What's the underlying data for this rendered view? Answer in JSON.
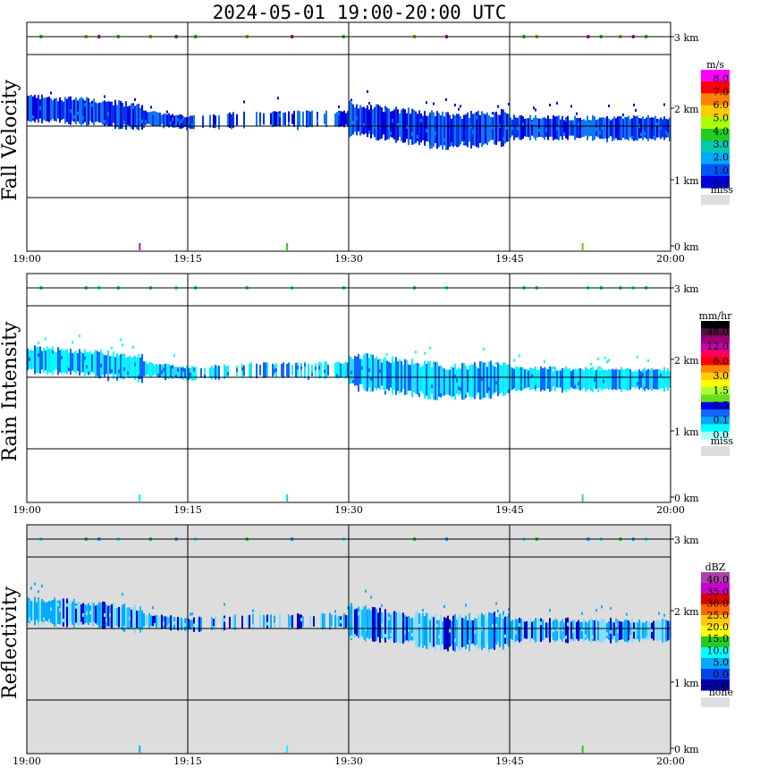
{
  "title": "2024-05-01   19:00-20:00 UTC",
  "chart_data": [
    {
      "type": "heatmap",
      "ylabel": "Fall Velocity",
      "x_ticks": [
        "19:00",
        "19:15",
        "19:30",
        "19:45",
        "20:00"
      ],
      "y_ticks": [
        "0 km",
        "1 km",
        "2 km",
        "3 km"
      ],
      "xlim": [
        "19:00",
        "20:00"
      ],
      "ylim_km": [
        0,
        3.2
      ],
      "grid": true,
      "colorbar": {
        "unit": "m/s",
        "labels": [
          "8.0",
          "7.0",
          "6.0",
          "5.0",
          "4.0",
          "3.0",
          "2.0",
          "1.0",
          "0.0"
        ],
        "colors": [
          "#ff00ff",
          "#ff0000",
          "#ff7f00",
          "#ffcc00",
          "#aaff00",
          "#22cc22",
          "#00ccaa",
          "#00aaff",
          "#0055ff",
          "#0000dd"
        ],
        "miss_label": "miss",
        "miss_color": "#dddddd"
      },
      "background": "#ffffff",
      "layer_colors": [
        "#0000dd",
        "#0033ee",
        "#1177ee"
      ],
      "echo_colors": [
        "#22cc22",
        "#66cc00",
        "#aa22aa"
      ]
    },
    {
      "type": "heatmap",
      "ylabel": "Rain Intensity",
      "x_ticks": [
        "19:00",
        "19:15",
        "19:30",
        "19:45",
        "20:00"
      ],
      "y_ticks": [
        "0 km",
        "1 km",
        "2 km",
        "3 km"
      ],
      "xlim": [
        "19:00",
        "20:00"
      ],
      "ylim_km": [
        0,
        3.2
      ],
      "grid": true,
      "colorbar": {
        "unit": "mm/hr",
        "labels": [
          "48.0",
          "12.0",
          "6.0",
          "3.0",
          "1.5",
          "0.5",
          "0.1",
          "0.0"
        ],
        "colors": [
          "#000000",
          "#551144",
          "#990077",
          "#cc00aa",
          "#ff0055",
          "#ff0000",
          "#ff8800",
          "#ffcc00",
          "#ffff00",
          "#aaff33",
          "#66dd22",
          "#0000ee",
          "#1166ff",
          "#00aaff",
          "#00ffff",
          "#aaffff"
        ],
        "miss_label": "miss",
        "miss_color": "#dddddd"
      },
      "background": "#ffffff",
      "layer_colors": [
        "#00ffff",
        "#22ddff",
        "#1166ff"
      ],
      "echo_colors": [
        "#00dddd",
        "#33cccc",
        "#00ffff"
      ]
    },
    {
      "type": "heatmap",
      "ylabel": "Reflectivity",
      "x_ticks": [
        "19:00",
        "19:15",
        "19:30",
        "19:45",
        "20:00"
      ],
      "y_ticks": [
        "0 km",
        "1 km",
        "2 km",
        "3 km"
      ],
      "xlim": [
        "19:00",
        "20:00"
      ],
      "ylim_km": [
        0,
        3.2
      ],
      "grid": true,
      "colorbar": {
        "unit": "dBZ",
        "labels": [
          "40.0",
          "35.0",
          "30.0",
          "25.0",
          "20.0",
          "15.0",
          "10.0",
          "5.0",
          "0.0",
          "−5.0"
        ],
        "colors": [
          "#aa44aa",
          "#cc00cc",
          "#dd0000",
          "#ff6600",
          "#ffcc00",
          "#ffff00",
          "#22cc22",
          "#00ffff",
          "#00aaff",
          "#0044ee",
          "#0000aa"
        ],
        "miss_label": "none",
        "miss_color": "#dddddd"
      },
      "background": "#dddddd",
      "layer_colors": [
        "#00aaff",
        "#22bbff",
        "#0000cc",
        "#88ddff"
      ],
      "echo_colors": [
        "#00ffff",
        "#22cc22",
        "#00aaff"
      ]
    }
  ]
}
